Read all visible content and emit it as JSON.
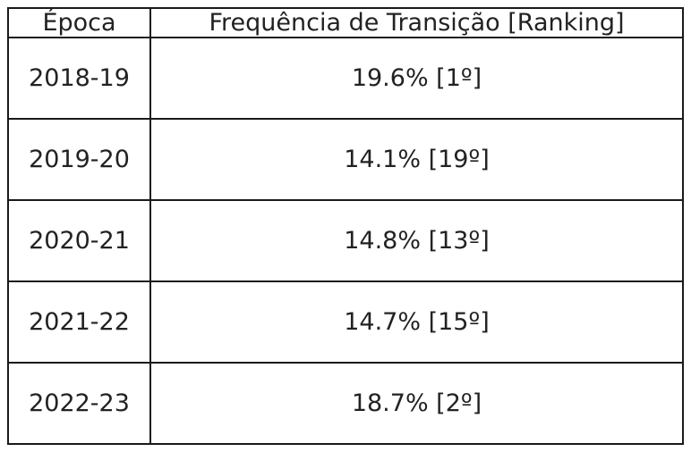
{
  "table": {
    "header": [
      "Época",
      "Frequência de Transição [Ranking]"
    ],
    "rows": [
      [
        "2018-19",
        "19.6% [1º]"
      ],
      [
        "2019-20",
        "14.1% [19º]"
      ],
      [
        "2020-21",
        "14.8% [13º]"
      ],
      [
        "2021-22",
        "14.7% [15º]"
      ],
      [
        "2022-23",
        "18.7% [2º]"
      ]
    ]
  }
}
